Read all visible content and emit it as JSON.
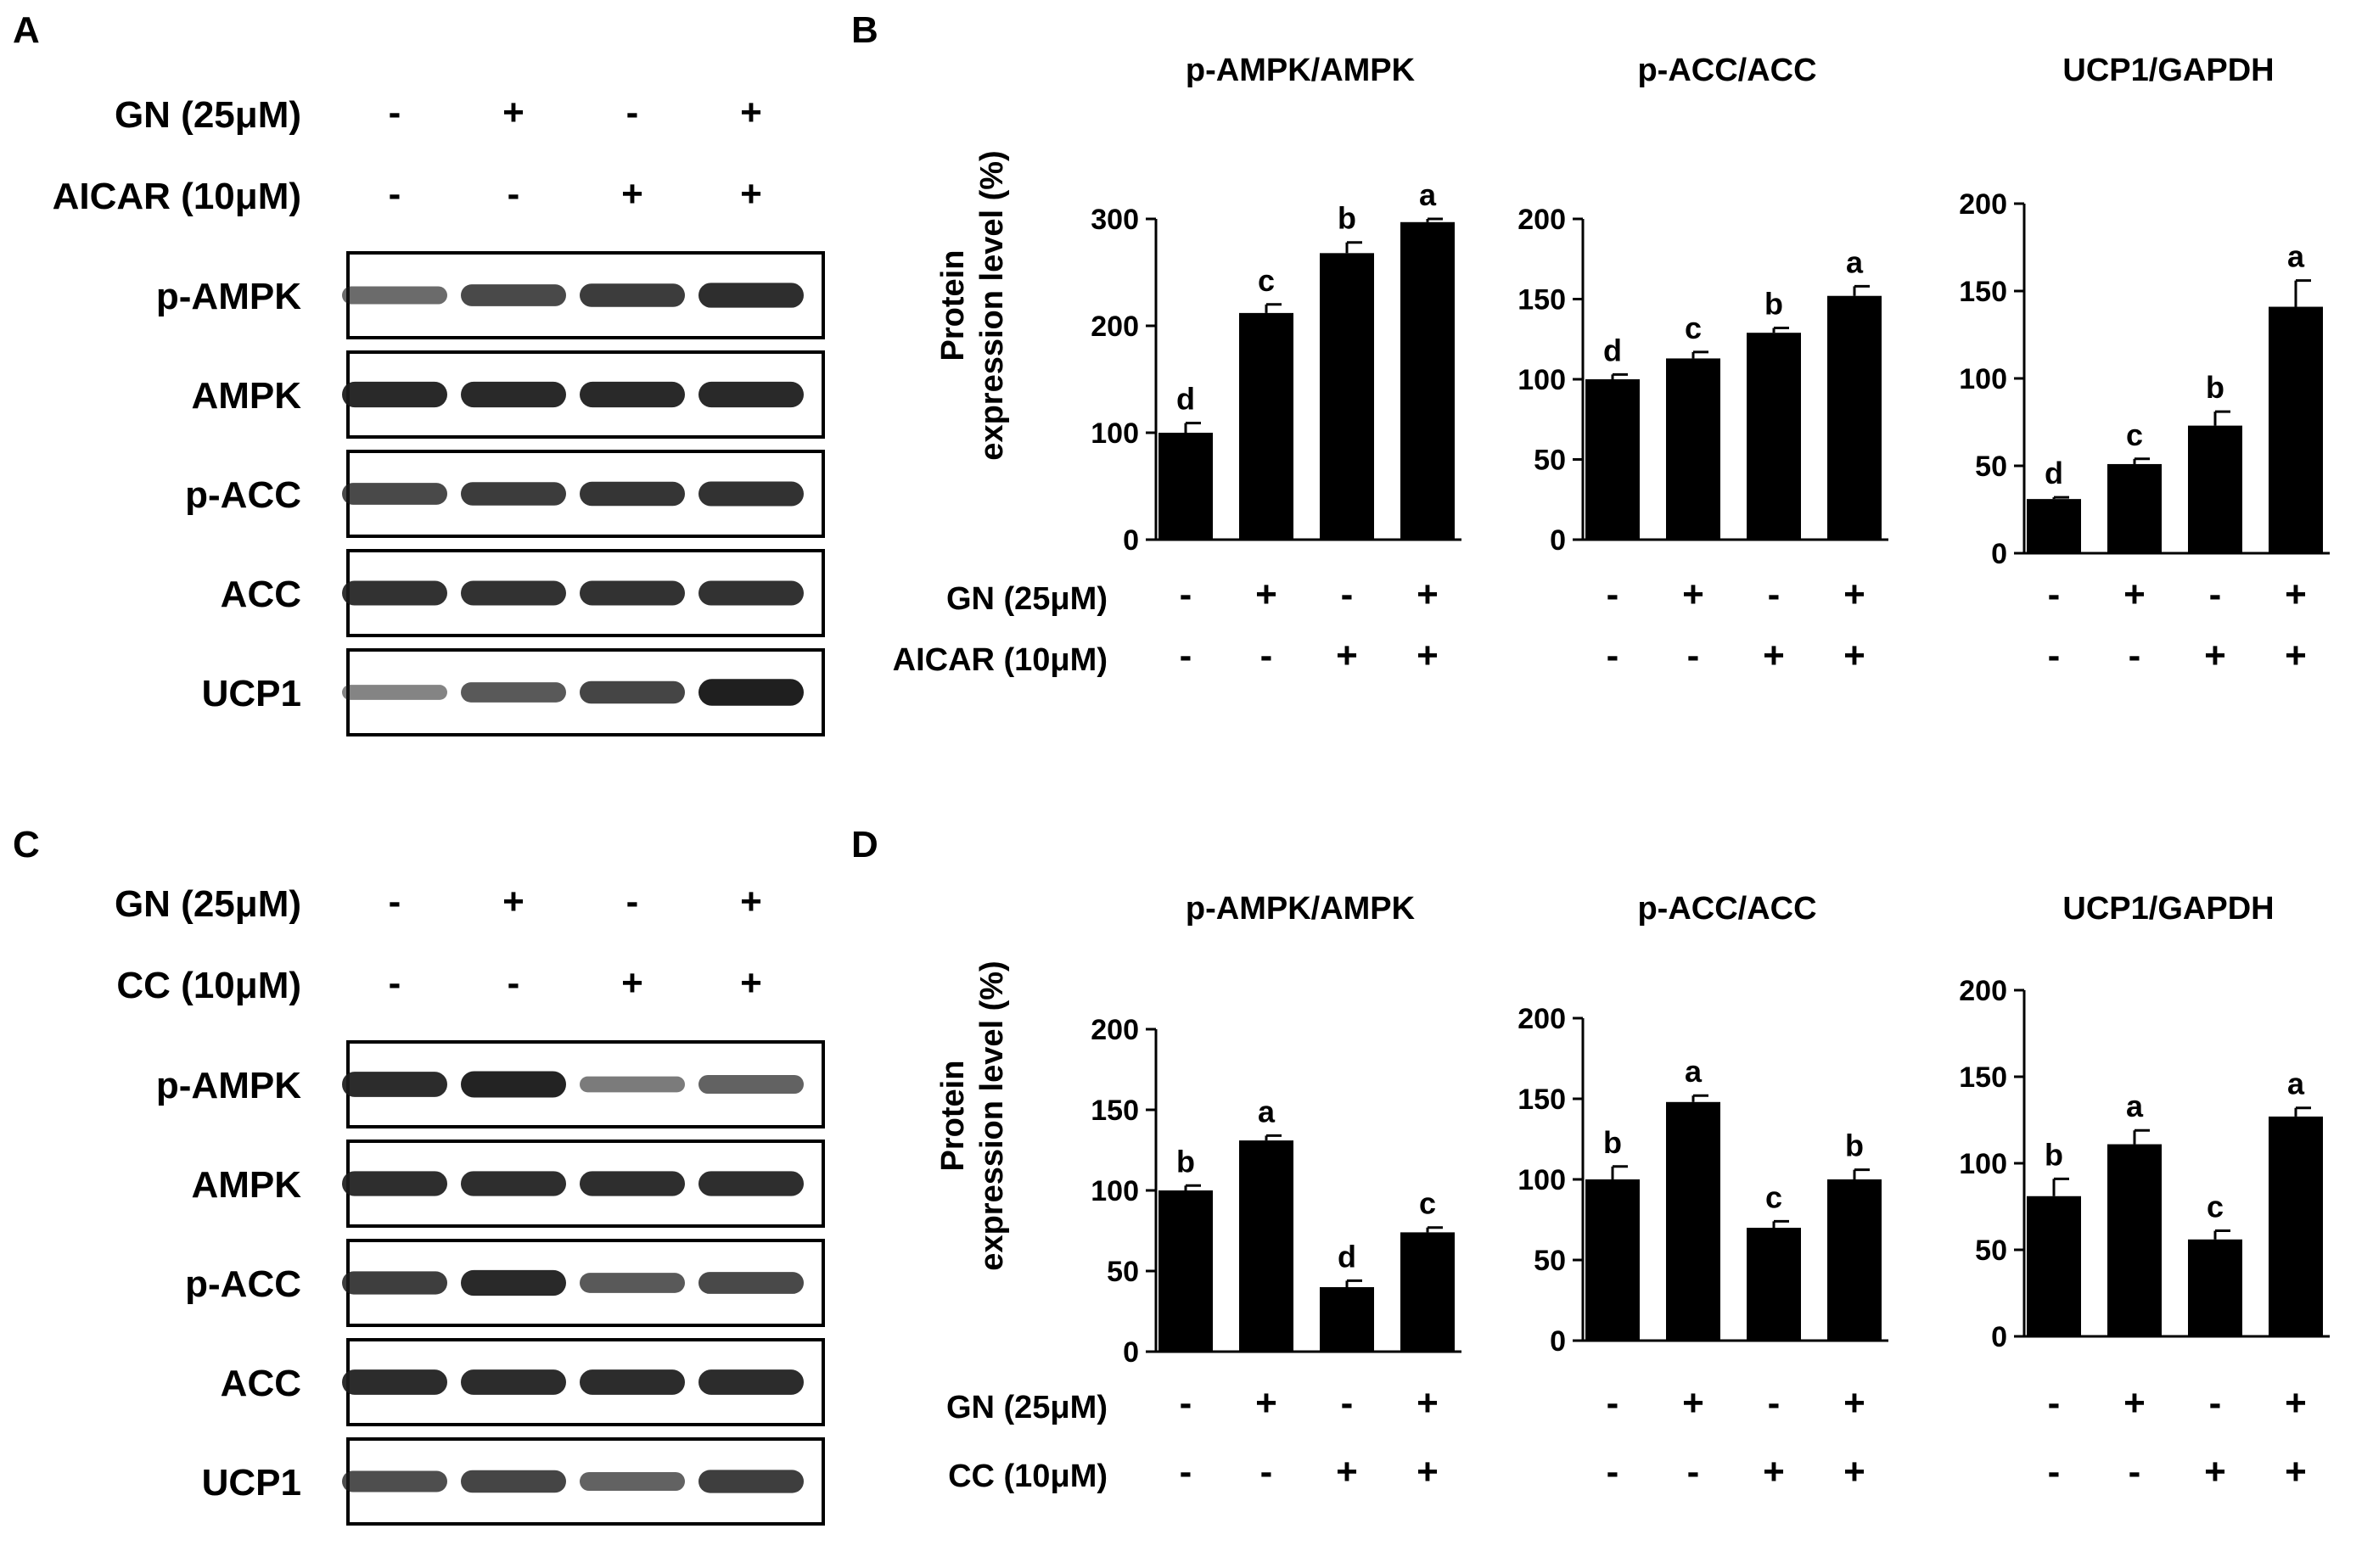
{
  "colors": {
    "bar": "#000000",
    "background": "#ffffff",
    "blot_band": "#1c1c1c"
  },
  "panels": {
    "A": "A",
    "B": "B",
    "C": "C",
    "D": "D"
  },
  "blot_A": {
    "treatments": [
      {
        "label": "GN (25μM)",
        "signs": [
          "-",
          "+",
          "-",
          "+"
        ]
      },
      {
        "label": "AICAR (10μM)",
        "signs": [
          "-",
          "-",
          "+",
          "+"
        ]
      }
    ],
    "bands": [
      {
        "label": "p-AMPK",
        "intensity": [
          0.5,
          0.72,
          0.8,
          0.88
        ]
      },
      {
        "label": "AMPK",
        "intensity": [
          0.92,
          0.92,
          0.92,
          0.92
        ]
      },
      {
        "label": "p-ACC",
        "intensity": [
          0.72,
          0.8,
          0.84,
          0.86
        ]
      },
      {
        "label": "ACC",
        "intensity": [
          0.86,
          0.86,
          0.86,
          0.86
        ]
      },
      {
        "label": "UCP1",
        "intensity": [
          0.35,
          0.62,
          0.75,
          0.98
        ]
      }
    ]
  },
  "blot_C": {
    "treatments": [
      {
        "label": "GN (25μM)",
        "signs": [
          "-",
          "+",
          "-",
          "+"
        ]
      },
      {
        "label": "CC (10μM)",
        "signs": [
          "-",
          "-",
          "+",
          "+"
        ]
      }
    ],
    "bands": [
      {
        "label": "p-AMPK",
        "intensity": [
          0.9,
          0.96,
          0.4,
          0.55
        ]
      },
      {
        "label": "AMPK",
        "intensity": [
          0.88,
          0.88,
          0.88,
          0.88
        ]
      },
      {
        "label": "p-ACC",
        "intensity": [
          0.78,
          0.92,
          0.62,
          0.72
        ]
      },
      {
        "label": "ACC",
        "intensity": [
          0.9,
          0.9,
          0.9,
          0.9
        ]
      },
      {
        "label": "UCP1",
        "intensity": [
          0.68,
          0.75,
          0.55,
          0.78
        ]
      }
    ]
  },
  "chart_ylabel_lines": [
    "Protein",
    "expression level (%)"
  ],
  "treatments_B": [
    {
      "label": "GN (25μM)",
      "signs": [
        "-",
        "+",
        "-",
        "+"
      ]
    },
    {
      "label": "AICAR  (10μM)",
      "signs": [
        "-",
        "-",
        "+",
        "+"
      ]
    }
  ],
  "treatments_D": [
    {
      "label": "GN (25μM)",
      "signs": [
        "-",
        "+",
        "-",
        "+"
      ]
    },
    {
      "label": "CC (10μM)",
      "signs": [
        "-",
        "-",
        "+",
        "+"
      ]
    }
  ],
  "chart_data": [
    {
      "type": "bar",
      "title": "p-AMPK/AMPK",
      "ylabel": "Protein expression level (%)",
      "ylim": [
        0,
        300
      ],
      "yticks": [
        0,
        100,
        200,
        300
      ],
      "values": [
        100,
        212,
        268,
        297
      ],
      "errors": [
        9,
        8,
        10,
        3
      ],
      "letters": [
        "d",
        "c",
        "b",
        "a"
      ]
    },
    {
      "type": "bar",
      "title": "p-ACC/ACC",
      "ylim": [
        0,
        200
      ],
      "yticks": [
        0,
        50,
        100,
        150,
        200
      ],
      "values": [
        100,
        113,
        129,
        152
      ],
      "errors": [
        3,
        4,
        3,
        6
      ],
      "letters": [
        "d",
        "c",
        "b",
        "a"
      ]
    },
    {
      "type": "bar",
      "title": "UCP1/GAPDH",
      "ylim": [
        0,
        200
      ],
      "yticks": [
        0,
        50,
        100,
        150,
        200
      ],
      "values": [
        31,
        51,
        73,
        141
      ],
      "errors": [
        1,
        3,
        8,
        15
      ],
      "letters": [
        "d",
        "c",
        "b",
        "a"
      ]
    },
    {
      "type": "bar",
      "title": "p-AMPK/AMPK",
      "ylabel": "Protein expression level (%)",
      "ylim": [
        0,
        200
      ],
      "yticks": [
        0,
        50,
        100,
        150,
        200
      ],
      "values": [
        100,
        131,
        40,
        74
      ],
      "errors": [
        3,
        3,
        4,
        3
      ],
      "letters": [
        "b",
        "a",
        "d",
        "c"
      ]
    },
    {
      "type": "bar",
      "title": "p-ACC/ACC",
      "ylim": [
        0,
        200
      ],
      "yticks": [
        0,
        50,
        100,
        150,
        200
      ],
      "values": [
        100,
        148,
        70,
        100
      ],
      "errors": [
        8,
        4,
        4,
        6
      ],
      "letters": [
        "b",
        "a",
        "c",
        "b"
      ]
    },
    {
      "type": "bar",
      "title": "UCP1/GAPDH",
      "ylim": [
        0,
        200
      ],
      "yticks": [
        0,
        50,
        100,
        150,
        200
      ],
      "values": [
        81,
        111,
        56,
        127
      ],
      "errors": [
        10,
        8,
        5,
        5
      ],
      "letters": [
        "b",
        "a",
        "c",
        "a"
      ]
    }
  ]
}
